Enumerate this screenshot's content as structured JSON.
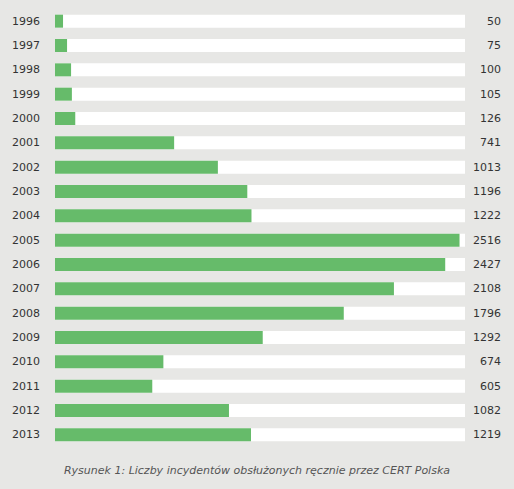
{
  "chart_data": {
    "type": "bar",
    "orientation": "horizontal",
    "title": "Rysunek 1: Liczby incydentów obsłużonych ręcznie przez CERT Polska",
    "categories": [
      "1996",
      "1997",
      "1998",
      "1999",
      "2000",
      "2001",
      "2002",
      "2003",
      "2004",
      "2005",
      "2006",
      "2007",
      "2008",
      "2009",
      "2010",
      "2011",
      "2012",
      "2013"
    ],
    "values": [
      50,
      75,
      100,
      105,
      126,
      741,
      1013,
      1196,
      1222,
      2516,
      2427,
      2108,
      1796,
      1292,
      674,
      605,
      1082,
      1219
    ],
    "color": "#66bb6a",
    "xlim": [
      0,
      2550
    ],
    "grid": false,
    "data_labels": true,
    "tick_labels": "y"
  }
}
